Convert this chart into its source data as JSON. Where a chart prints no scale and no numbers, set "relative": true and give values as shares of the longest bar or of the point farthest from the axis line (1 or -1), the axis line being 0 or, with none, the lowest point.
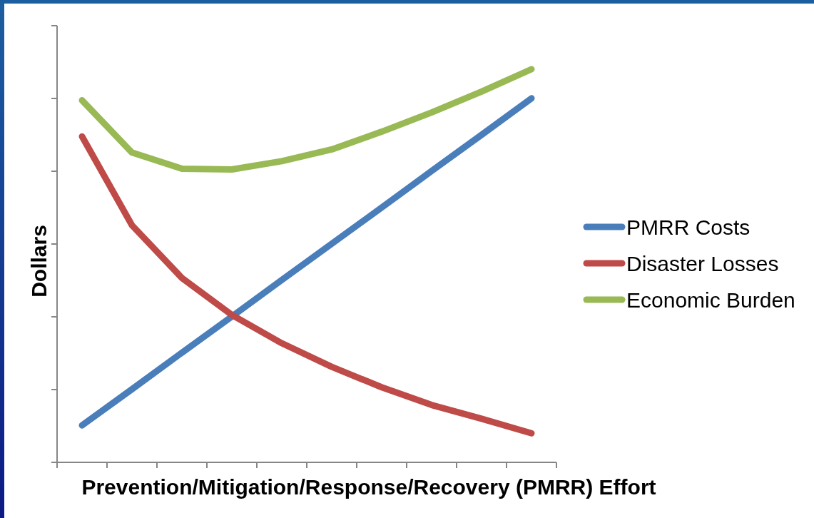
{
  "chart_data": {
    "type": "line",
    "relative": true,
    "xlabel": "Prevention/Mitigation/Response/Recovery (PMRR) Effort",
    "ylabel": "Dollars",
    "legend": "right",
    "categories": [
      null,
      null,
      null,
      null,
      null,
      null,
      null,
      null,
      null,
      null
    ],
    "series": [
      {
        "name": "PMRR Costs",
        "color": "#4a7ebb",
        "values": [
          0.094,
          0.186,
          0.279,
          0.371,
          0.464,
          0.556,
          0.648,
          0.741,
          0.833,
          0.926
        ]
      },
      {
        "name": "Disaster Losses",
        "color": "#be4b48",
        "values": [
          0.829,
          0.603,
          0.469,
          0.375,
          0.303,
          0.243,
          0.191,
          0.146,
          0.111,
          0.074
        ]
      },
      {
        "name": "Economic Burden",
        "color": "#98b954",
        "values": [
          0.921,
          0.788,
          0.747,
          0.745,
          0.766,
          0.796,
          0.841,
          0.89,
          0.943,
          1
        ]
      }
    ]
  }
}
